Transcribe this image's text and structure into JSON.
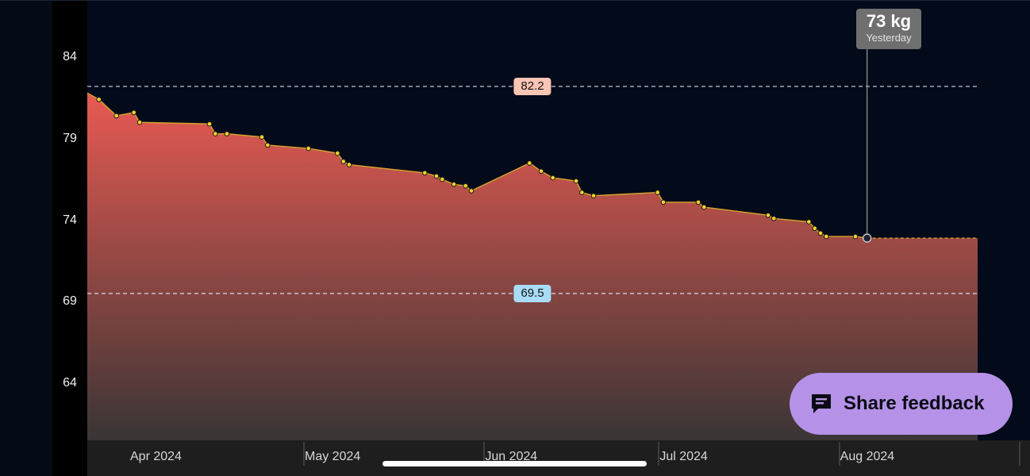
{
  "chart_data": {
    "type": "area",
    "y_unit": "kg",
    "ylim": [
      60.5,
      87.5
    ],
    "xlim": [
      "2024-03-26",
      "2024-08-26"
    ],
    "y_ticks": [
      84,
      79,
      74,
      69,
      64
    ],
    "x_tick_labels": [
      {
        "label": "Apr 2024",
        "date": "2024-04-01"
      },
      {
        "label": "May 2024",
        "date": "2024-05-01"
      },
      {
        "label": "Jun 2024",
        "date": "2024-06-01"
      },
      {
        "label": "Jul 2024",
        "date": "2024-07-01"
      },
      {
        "label": "Aug 2024",
        "date": "2024-08-01"
      }
    ],
    "reference_lines": [
      {
        "value": 82.2,
        "label": "82.2",
        "kind": "high"
      },
      {
        "value": 69.5,
        "label": "69.5",
        "kind": "low"
      }
    ],
    "series_start": {
      "date": "2024-03-26",
      "value": 81.8
    },
    "points": [
      {
        "date": "2024-03-28",
        "value": 81.4
      },
      {
        "date": "2024-03-31",
        "value": 80.4
      },
      {
        "date": "2024-04-03",
        "value": 80.6
      },
      {
        "date": "2024-04-04",
        "value": 80.0
      },
      {
        "date": "2024-04-16",
        "value": 79.9
      },
      {
        "date": "2024-04-17",
        "value": 79.3
      },
      {
        "date": "2024-04-19",
        "value": 79.3
      },
      {
        "date": "2024-04-25",
        "value": 79.1
      },
      {
        "date": "2024-04-26",
        "value": 78.6
      },
      {
        "date": "2024-05-03",
        "value": 78.4
      },
      {
        "date": "2024-05-08",
        "value": 78.1
      },
      {
        "date": "2024-05-09",
        "value": 77.6
      },
      {
        "date": "2024-05-10",
        "value": 77.4
      },
      {
        "date": "2024-05-23",
        "value": 76.9
      },
      {
        "date": "2024-05-25",
        "value": 76.7
      },
      {
        "date": "2024-05-26",
        "value": 76.5
      },
      {
        "date": "2024-05-28",
        "value": 76.2
      },
      {
        "date": "2024-05-30",
        "value": 76.1
      },
      {
        "date": "2024-05-31",
        "value": 75.8
      },
      {
        "date": "2024-06-10",
        "value": 77.5
      },
      {
        "date": "2024-06-12",
        "value": 77.0
      },
      {
        "date": "2024-06-14",
        "value": 76.6
      },
      {
        "date": "2024-06-18",
        "value": 76.4
      },
      {
        "date": "2024-06-19",
        "value": 75.7
      },
      {
        "date": "2024-06-21",
        "value": 75.5
      },
      {
        "date": "2024-07-02",
        "value": 75.7
      },
      {
        "date": "2024-07-03",
        "value": 75.1
      },
      {
        "date": "2024-07-09",
        "value": 75.1
      },
      {
        "date": "2024-07-10",
        "value": 74.8
      },
      {
        "date": "2024-07-21",
        "value": 74.3
      },
      {
        "date": "2024-07-22",
        "value": 74.1
      },
      {
        "date": "2024-07-28",
        "value": 73.9
      },
      {
        "date": "2024-07-29",
        "value": 73.5
      },
      {
        "date": "2024-07-30",
        "value": 73.2
      },
      {
        "date": "2024-07-31",
        "value": 73.0
      },
      {
        "date": "2024-08-05",
        "value": 73.0
      },
      {
        "date": "2024-08-07",
        "value": 72.9
      }
    ],
    "series_end": {
      "date": "2024-08-26",
      "value": 72.9
    },
    "highlighted_point": {
      "date": "2024-08-07",
      "value": 72.9
    },
    "colors": {
      "area_top": "#e85a52",
      "area_bottom": "#3a3535",
      "line": "#d6a528",
      "marker_fill": "#f1d22a",
      "ref_line": "#d8dbe6",
      "highlight_marker": "#1d2230"
    },
    "grid": false
  },
  "tooltip": {
    "value": "73 kg",
    "label": "Yesterday"
  },
  "feedback_button": {
    "label": "Share feedback",
    "icon": "chat-message-icon"
  }
}
